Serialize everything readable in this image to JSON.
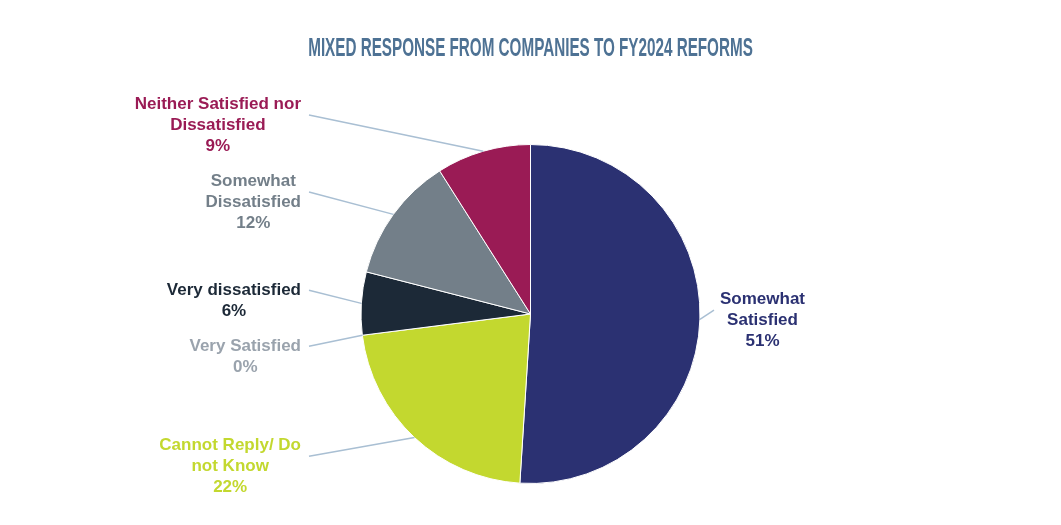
{
  "chart_data": {
    "type": "pie",
    "title": "MIXED RESPONSE FROM COMPANIES TO FY2024 REFORMS",
    "categories": [
      "Somewhat Satisfied",
      "Cannot Reply/ Do not Know",
      "Very Satisfied",
      "Very dissatisfied",
      "Somewhat Dissatisfied",
      "Neither Satisfied nor Dissatisfied"
    ],
    "values": [
      51,
      22,
      0,
      6,
      12,
      9
    ],
    "value_labels": [
      "51%",
      "22%",
      "0%",
      "6%",
      "12%",
      "9%"
    ],
    "colors": [
      "#2b3172",
      "#c3d82f",
      "#9aa3ad",
      "#1c2937",
      "#737f89",
      "#9a1b55"
    ]
  }
}
